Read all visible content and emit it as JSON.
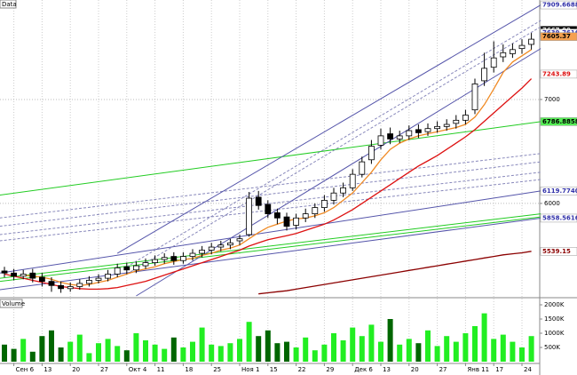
{
  "chart_data": {
    "type": "candlestick",
    "title": "Data",
    "categories": [
      null,
      "Сен 6",
      null,
      null,
      "13",
      null,
      null,
      "20",
      null,
      null,
      "27",
      null,
      null,
      "Окт 4",
      null,
      null,
      "11",
      null,
      null,
      "18",
      null,
      null,
      "25",
      null,
      null,
      "Ноя 1",
      null,
      null,
      "15",
      null,
      null,
      "22",
      null,
      null,
      "29",
      null,
      null,
      "Дек 6",
      null,
      null,
      "13",
      null,
      null,
      "20",
      null,
      null,
      "27",
      null,
      null,
      "Янв 11",
      null,
      null,
      "17",
      null,
      null,
      "24",
      null
    ],
    "open": [
      5350,
      5330,
      5300,
      5330,
      5290,
      5250,
      5210,
      5180,
      5200,
      5230,
      5260,
      5280,
      5320,
      5390,
      5360,
      5400,
      5430,
      5460,
      5490,
      5450,
      5490,
      5520,
      5550,
      5580,
      5600,
      5640,
      5700,
      6060,
      5990,
      5910,
      5870,
      5790,
      5860,
      5900,
      5960,
      6030,
      6100,
      6150,
      6280,
      6420,
      6560,
      6670,
      6620,
      6650,
      6710,
      6690,
      6720,
      6740,
      6770,
      6800,
      6900,
      7180,
      7310,
      7410,
      7440,
      7490,
      7530
    ],
    "high": [
      5390,
      5370,
      5360,
      5370,
      5330,
      5290,
      5250,
      5240,
      5270,
      5300,
      5320,
      5360,
      5420,
      5430,
      5440,
      5470,
      5500,
      5520,
      5530,
      5530,
      5560,
      5590,
      5620,
      5640,
      5660,
      5700,
      6110,
      6120,
      6030,
      5950,
      5910,
      5900,
      5950,
      6000,
      6080,
      6150,
      6200,
      6330,
      6450,
      6610,
      6720,
      6730,
      6700,
      6750,
      6760,
      6770,
      6790,
      6810,
      6850,
      6900,
      7200,
      7450,
      7560,
      7530,
      7540,
      7580,
      7640
    ],
    "low": [
      5290,
      5260,
      5270,
      5240,
      5200,
      5150,
      5140,
      5150,
      5170,
      5200,
      5230,
      5250,
      5290,
      5320,
      5330,
      5370,
      5400,
      5420,
      5410,
      5420,
      5450,
      5480,
      5510,
      5540,
      5560,
      5600,
      5680,
      5940,
      5860,
      5800,
      5740,
      5750,
      5820,
      5860,
      5920,
      5990,
      6060,
      6120,
      6250,
      6380,
      6520,
      6570,
      6580,
      6610,
      6630,
      6650,
      6680,
      6700,
      6720,
      6760,
      6860,
      7130,
      7260,
      7360,
      7400,
      7440,
      7480
    ],
    "close": [
      5330,
      5300,
      5320,
      5280,
      5250,
      5210,
      5180,
      5200,
      5230,
      5260,
      5280,
      5320,
      5380,
      5360,
      5400,
      5430,
      5460,
      5480,
      5450,
      5490,
      5520,
      5550,
      5580,
      5600,
      5620,
      5660,
      6050,
      5980,
      5900,
      5860,
      5780,
      5860,
      5900,
      5960,
      6030,
      6100,
      6150,
      6280,
      6400,
      6550,
      6650,
      6620,
      6650,
      6700,
      6680,
      6720,
      6740,
      6760,
      6800,
      6850,
      7150,
      7300,
      7400,
      7450,
      7480,
      7520,
      7580
    ],
    "up_color": "#ffffff",
    "down_color": "#000000",
    "ylim": [
      5110,
      7940
    ],
    "yticks": [
      6000,
      7000
    ],
    "grid": true,
    "lines": [
      {
        "color": "#f08a24",
        "values": [
          null,
          null,
          5310,
          5300,
          5290,
          5270,
          5240,
          5220,
          5210,
          5220,
          5240,
          5260,
          5290,
          5320,
          5350,
          5370,
          5390,
          5420,
          5440,
          5460,
          5470,
          5500,
          5520,
          5550,
          5570,
          5600,
          5660,
          5720,
          5770,
          5800,
          5830,
          5850,
          5860,
          5880,
          5910,
          5960,
          6030,
          6100,
          6200,
          6300,
          6420,
          6520,
          6580,
          6620,
          6650,
          6670,
          6690,
          6710,
          6730,
          6760,
          6830,
          6950,
          7100,
          7260,
          7360,
          7420,
          7480
        ]
      },
      {
        "color": "#dd1111",
        "values": [
          5320,
          5300,
          5280,
          5260,
          5240,
          5220,
          5200,
          5190,
          5180,
          5175,
          5175,
          5180,
          5190,
          5210,
          5230,
          5250,
          5280,
          5310,
          5340,
          5370,
          5400,
          5430,
          5460,
          5490,
          5520,
          5550,
          5590,
          5620,
          5650,
          5670,
          5690,
          5710,
          5740,
          5770,
          5800,
          5840,
          5890,
          5940,
          6000,
          6060,
          6120,
          6180,
          6240,
          6300,
          6360,
          6410,
          6460,
          6520,
          6580,
          6640,
          6710,
          6790,
          6870,
          6950,
          7030,
          7110,
          7200
        ]
      },
      {
        "color": "#8b0000",
        "values": [
          null,
          null,
          null,
          null,
          null,
          null,
          null,
          null,
          null,
          null,
          null,
          null,
          null,
          null,
          null,
          null,
          null,
          null,
          null,
          null,
          null,
          null,
          null,
          null,
          null,
          null,
          null,
          5130,
          5140,
          5150,
          5160,
          5175,
          5190,
          5205,
          5220,
          5235,
          5250,
          5265,
          5280,
          5295,
          5310,
          5325,
          5340,
          5355,
          5370,
          5385,
          5400,
          5415,
          5430,
          5445,
          5460,
          5475,
          5490,
          5505,
          5515,
          5525,
          5539.15
        ]
      }
    ],
    "trendlines": [
      {
        "color": "#22cc22",
        "dash": false,
        "x": [
          -0.5,
          57
        ],
        "values": [
          6080,
          6786.8858
        ]
      },
      {
        "color": "#22cc22",
        "dash": false,
        "x": [
          -0.5,
          57
        ],
        "values": [
          5280,
          5900
        ]
      },
      {
        "color": "#22cc22",
        "dash": false,
        "x": [
          -0.5,
          57
        ],
        "values": [
          5250,
          5870
        ]
      },
      {
        "color": "#5555aa",
        "dash": false,
        "x": [
          -0.5,
          57
        ],
        "values": [
          5330,
          6119.774
        ]
      },
      {
        "color": "#5555aa",
        "dash": false,
        "x": [
          -0.5,
          57
        ],
        "values": [
          5170,
          5858.5616
        ]
      },
      {
        "color": "#8888bb",
        "dash": true,
        "x": [
          -0.5,
          57
        ],
        "values": [
          5860,
          6480
        ]
      },
      {
        "color": "#8888bb",
        "dash": true,
        "x": [
          -0.5,
          57
        ],
        "values": [
          5780,
          6400
        ]
      },
      {
        "color": "#8888bb",
        "dash": true,
        "x": [
          -0.5,
          57
        ],
        "values": [
          5700,
          6300
        ]
      },
      {
        "color": "#8888bb",
        "dash": true,
        "x": [
          -0.5,
          57
        ],
        "values": [
          5640,
          6230
        ]
      },
      {
        "color": "#5555aa",
        "dash": false,
        "x": [
          12,
          57
        ],
        "values": [
          5520,
          7909.6688
        ]
      },
      {
        "color": "#5555aa",
        "dash": false,
        "x": [
          14,
          57
        ],
        "values": [
          5110,
          7490
        ]
      },
      {
        "color": "#8888bb",
        "dash": true,
        "x": [
          13,
          57
        ],
        "values": [
          5320,
          7700
        ]
      },
      {
        "color": "#8888bb",
        "dash": true,
        "x": [
          13,
          57
        ],
        "values": [
          5390,
          7760
        ]
      }
    ],
    "price_labels": [
      {
        "value": 7909.6688,
        "label": "7909.6688",
        "color": "#3333aa",
        "background": "#ffffff"
      },
      {
        "value": 7667,
        "label": "7667.00",
        "color": "#ffffff",
        "background": "#000000"
      },
      {
        "value": 7639.7616,
        "label": "7639.7616",
        "color": "#3333aa",
        "background": "#ffffff"
      },
      {
        "value": 7605.37,
        "label": "7605.37",
        "color": "#000000",
        "background": "#f5a050"
      },
      {
        "value": 7243.89,
        "label": "7243.89",
        "color": "#dd1111",
        "background": "#ffffff"
      },
      {
        "value": 6786.8858,
        "label": "6786.8858",
        "color": "#000000",
        "background": "#55ee55"
      },
      {
        "value": 6119.774,
        "label": "6119.7740",
        "color": "#3333aa",
        "background": "#ffffff"
      },
      {
        "value": 5858.5616,
        "label": "5858.5616",
        "color": "#3333aa",
        "background": "#ffffff"
      },
      {
        "value": 5539.15,
        "label": "5539.15",
        "color": "#8b0000",
        "background": "#ffffff"
      }
    ],
    "volume": {
      "title": "Volume",
      "values": [
        600000,
        450000,
        800000,
        350000,
        900000,
        1100000,
        500000,
        700000,
        950000,
        300000,
        650000,
        800000,
        550000,
        400000,
        1000000,
        750000,
        600000,
        450000,
        850000,
        500000,
        700000,
        1200000,
        600000,
        550000,
        650000,
        800000,
        1400000,
        900000,
        1100000,
        650000,
        700000,
        500000,
        850000,
        400000,
        600000,
        1000000,
        750000,
        1200000,
        900000,
        1300000,
        700000,
        1500000,
        600000,
        800000,
        650000,
        1100000,
        550000,
        900000,
        700000,
        1000000,
        1250000,
        1700000,
        800000,
        950000,
        700000,
        500000,
        900000
      ],
      "ylim": [
        0,
        2200000
      ],
      "yticks": [
        {
          "value": 500000,
          "label": "500K"
        },
        {
          "value": 1000000,
          "label": "1000K"
        },
        {
          "value": 1500000,
          "label": "1500K"
        },
        {
          "value": 2000000,
          "label": "2000K"
        }
      ],
      "up_color": "#22ee22",
      "down_color": "#006600"
    }
  }
}
